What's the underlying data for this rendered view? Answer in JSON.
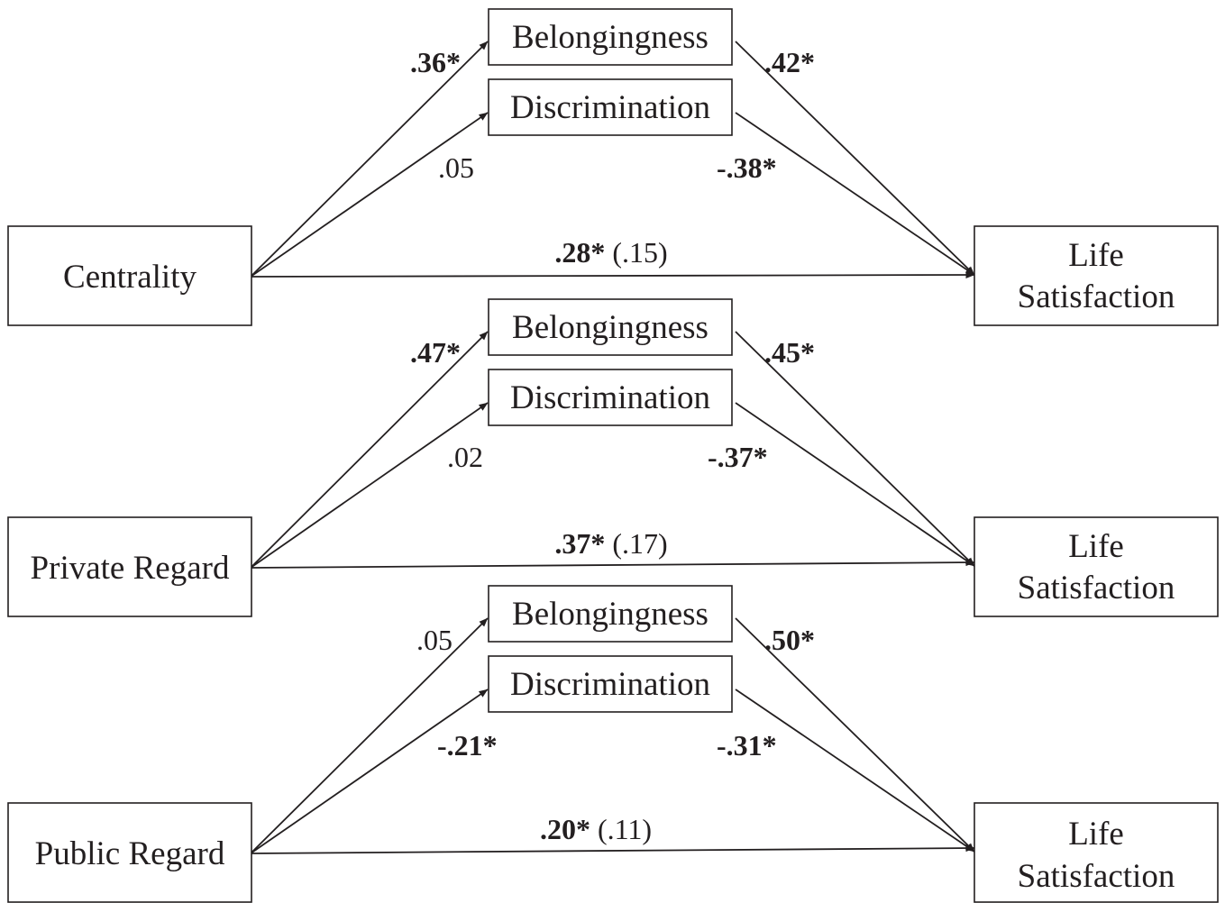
{
  "panels": [
    {
      "predictor": "Centrality",
      "mediator_top": "Belongingness",
      "mediator_bottom": "Discrimination",
      "outcome_line1": "Life",
      "outcome_line2": "Satisfaction",
      "a_belong": {
        "text": ".36*",
        "significant": true
      },
      "a_discrim": {
        "text": ".05",
        "significant": false
      },
      "b_belong": {
        "text": ".42*",
        "significant": true
      },
      "b_discrim": {
        "text": "-.38*",
        "significant": true
      },
      "c_total": ".28*",
      "c_direct": "(.15)"
    },
    {
      "predictor": "Private Regard",
      "mediator_top": "Belongingness",
      "mediator_bottom": "Discrimination",
      "outcome_line1": "Life",
      "outcome_line2": "Satisfaction",
      "a_belong": {
        "text": ".47*",
        "significant": true
      },
      "a_discrim": {
        "text": ".02",
        "significant": false
      },
      "b_belong": {
        "text": ".45*",
        "significant": true
      },
      "b_discrim": {
        "text": "-.37*",
        "significant": true
      },
      "c_total": ".37*",
      "c_direct": "(.17)"
    },
    {
      "predictor": "Public Regard",
      "mediator_top": "Belongingness",
      "mediator_bottom": "Discrimination",
      "outcome_line1": "Life",
      "outcome_line2": "Satisfaction",
      "a_belong": {
        "text": ".05",
        "significant": false
      },
      "a_discrim": {
        "text": "-.21*",
        "significant": true
      },
      "b_belong": {
        "text": ".50*",
        "significant": true
      },
      "b_discrim": {
        "text": "-.31*",
        "significant": true
      },
      "c_total": ".20*",
      "c_direct": "(.11)"
    }
  ],
  "colors": {
    "ink": "#231f20",
    "background": "#ffffff"
  }
}
